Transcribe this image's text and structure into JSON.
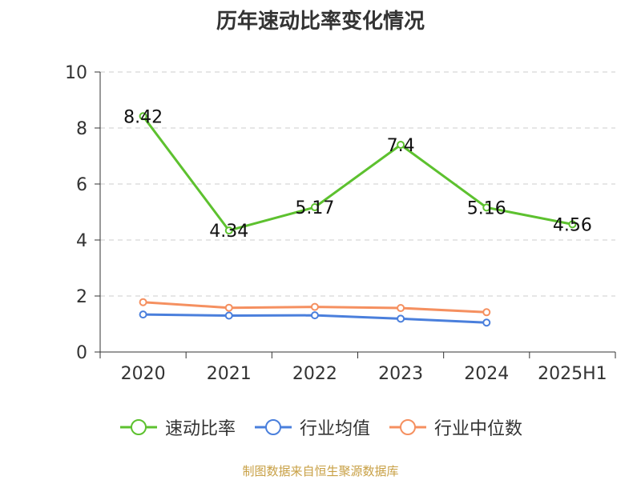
{
  "title": "历年速动比率变化情况",
  "footer": "制图数据来自恒生聚源数据库",
  "colors": {
    "speed": "#5dc12f",
    "avg": "#4a7fdc",
    "median": "#f59060",
    "grid": "#cccccc",
    "axis": "#333333"
  },
  "chart_data": {
    "type": "line",
    "title": "历年速动比率变化情况",
    "categories": [
      "2020",
      "2021",
      "2022",
      "2023",
      "2024",
      "2025H1"
    ],
    "ylim": [
      0,
      10
    ],
    "yticks": [
      0,
      2,
      4,
      6,
      8,
      10
    ],
    "grid": true,
    "legend_position": "bottom",
    "series": [
      {
        "name": "速动比率",
        "values": [
          8.42,
          4.34,
          5.17,
          7.4,
          5.16,
          4.56
        ],
        "labels": [
          "8.42",
          "4.34",
          "5.17",
          "7.4",
          "5.16",
          "4.56"
        ],
        "color": "#5dc12f"
      },
      {
        "name": "行业均值",
        "values": [
          1.34,
          1.3,
          1.31,
          1.19,
          1.05,
          null
        ],
        "color": "#4a7fdc"
      },
      {
        "name": "行业中位数",
        "values": [
          1.78,
          1.58,
          1.61,
          1.57,
          1.42,
          null
        ],
        "color": "#f59060"
      }
    ]
  }
}
